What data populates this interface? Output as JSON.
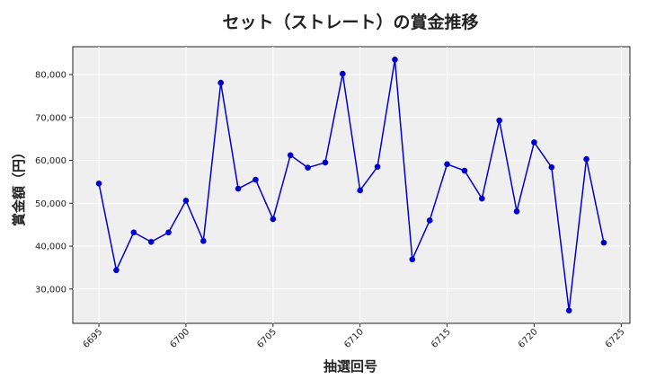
{
  "chart_data": {
    "type": "line",
    "title": "セット（ストレート）の賞金推移",
    "xlabel": "抽選回号",
    "ylabel": "賞金額（円）",
    "xlim": [
      6693.5,
      6725.5
    ],
    "ylim": [
      22000,
      86500
    ],
    "xticks": [
      6695,
      6700,
      6705,
      6710,
      6715,
      6720,
      6725
    ],
    "yticks": [
      30000,
      40000,
      50000,
      60000,
      70000,
      80000
    ],
    "ytick_labels": [
      "30,000",
      "40,000",
      "50,000",
      "60,000",
      "70,000",
      "80,000"
    ],
    "grid": true,
    "colors": {
      "line": "#0000cc",
      "marker": "#0000cc",
      "plot_bg": "#efefef",
      "grid": "#ffffff"
    },
    "x": [
      6695,
      6696,
      6697,
      6698,
      6699,
      6700,
      6701,
      6702,
      6703,
      6704,
      6705,
      6706,
      6707,
      6708,
      6709,
      6710,
      6711,
      6712,
      6713,
      6714,
      6715,
      6716,
      6717,
      6718,
      6719,
      6720,
      6721,
      6722,
      6723,
      6724
    ],
    "values": [
      54600,
      34400,
      43200,
      41000,
      43200,
      50600,
      41200,
      78100,
      53400,
      55500,
      46300,
      61200,
      58300,
      59500,
      80200,
      53000,
      58500,
      83500,
      36900,
      46000,
      59100,
      57600,
      51100,
      69300,
      48100,
      64200,
      58400,
      25000,
      60300,
      40800
    ]
  }
}
